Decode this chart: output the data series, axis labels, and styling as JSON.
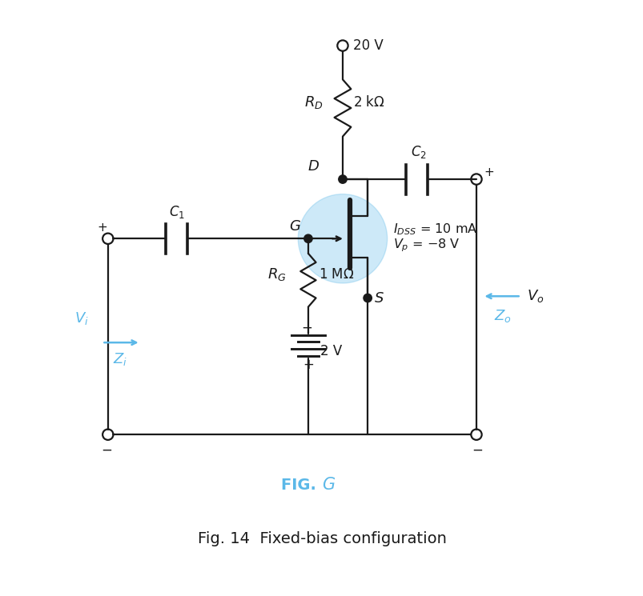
{
  "bg_color": "#ffffff",
  "line_color": "#1a1a1a",
  "blue_color": "#5bb8e8",
  "fig_width": 8.04,
  "fig_height": 7.45,
  "fig_dpi": 100,
  "vdd_text": "20 V",
  "rd_text": "$R_D$",
  "rd_val": "2 k$\\Omega$",
  "c2_text": "$C_2$",
  "c1_text": "$C_1$",
  "rg_text": "$R_G$",
  "rg_val": "1 M$\\Omega$",
  "idss_text": "$I_{DSS}$ = 10 mA",
  "vp_text": "$V_p$ = −8 V",
  "vbias_text": "2 V",
  "vo_text": "$V_o$",
  "vi_text": "$V_i$",
  "zi_text": "$Z_i$",
  "zo_text": "$Z_o$",
  "d_text": "D",
  "g_text": "G",
  "s_text": "S",
  "fig_label_plain": "FIG. ",
  "fig_label_italic": "$\\mathit{G}$",
  "caption": "Fig. 14  Fixed-bias configuration"
}
